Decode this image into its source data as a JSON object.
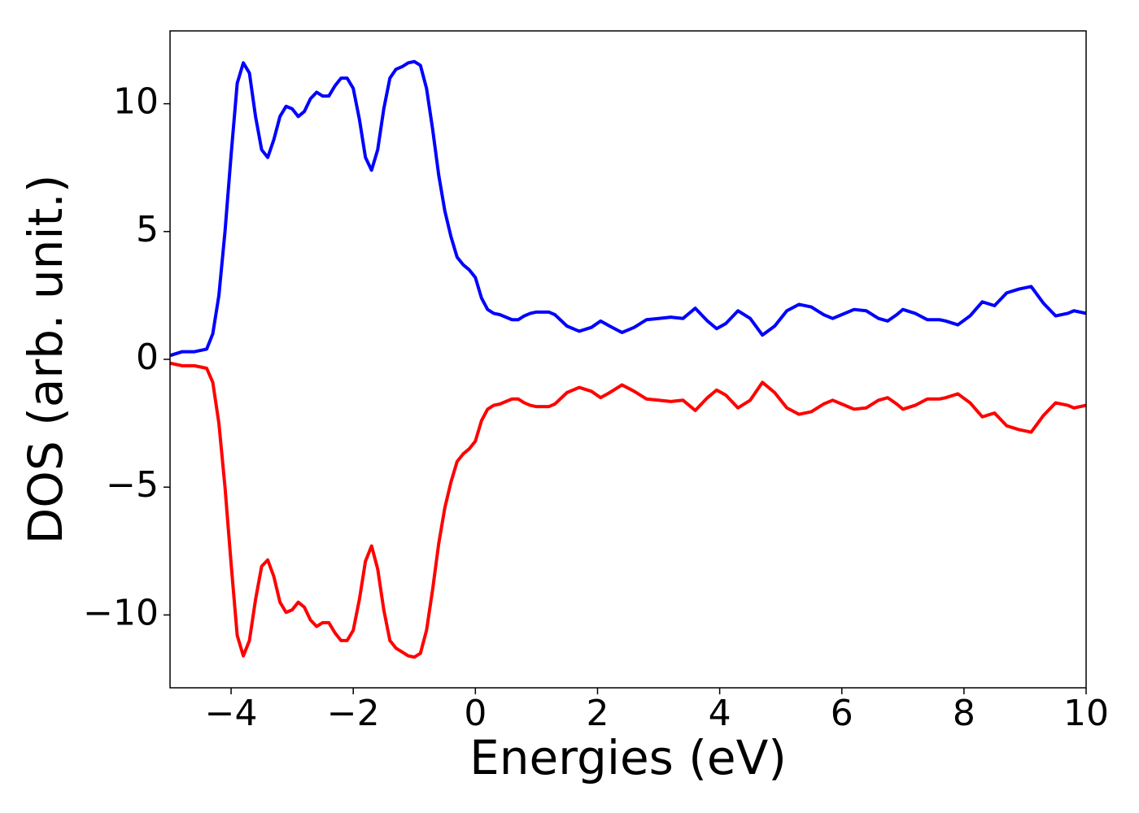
{
  "chart_data": {
    "type": "line",
    "xlabel": "Energies (eV)",
    "ylabel": "DOS (arb. unit.)",
    "x": [
      -5,
      -4.8,
      -4.6,
      -4.4,
      -4.3,
      -4.2,
      -4.1,
      -4,
      -3.9,
      -3.8,
      -3.7,
      -3.6,
      -3.5,
      -3.4,
      -3.3,
      -3.2,
      -3.1,
      -3,
      -2.9,
      -2.8,
      -2.7,
      -2.6,
      -2.5,
      -2.4,
      -2.3,
      -2.2,
      -2.1,
      -2,
      -1.9,
      -1.8,
      -1.7,
      -1.6,
      -1.5,
      -1.4,
      -1.3,
      -1.2,
      -1.1,
      -1,
      -0.9,
      -0.8,
      -0.7,
      -0.6,
      -0.5,
      -0.4,
      -0.3,
      -0.2,
      -0.1,
      0,
      0.1,
      0.2,
      0.3,
      0.4,
      0.5,
      0.6,
      0.7,
      0.8,
      0.9,
      1,
      1.2,
      1.3,
      1.5,
      1.7,
      1.9,
      2.05,
      2.2,
      2.4,
      2.6,
      2.8,
      3,
      3.2,
      3.4,
      3.6,
      3.8,
      3.95,
      4.1,
      4.3,
      4.5,
      4.7,
      4.9,
      5.1,
      5.3,
      5.5,
      5.7,
      5.85,
      6,
      6.2,
      6.4,
      6.6,
      6.75,
      6.9,
      7,
      7.2,
      7.4,
      7.6,
      7.7,
      7.9,
      8.1,
      8.3,
      8.5,
      8.7,
      8.9,
      9.1,
      9.3,
      9.5,
      9.7,
      9.8,
      10
    ],
    "series": [
      {
        "color": "#0000ff",
        "values": [
          0.15,
          0.3,
          0.3,
          0.4,
          1.0,
          2.5,
          5,
          8,
          10.8,
          11.6,
          11.2,
          9.5,
          8.2,
          7.9,
          8.6,
          9.5,
          9.9,
          9.8,
          9.5,
          9.7,
          10.2,
          10.45,
          10.3,
          10.3,
          10.7,
          11,
          11,
          10.6,
          9.4,
          7.9,
          7.4,
          8.2,
          9.8,
          11,
          11.35,
          11.45,
          11.6,
          11.65,
          11.5,
          10.6,
          9,
          7.2,
          5.8,
          4.8,
          4,
          3.7,
          3.5,
          3.2,
          2.4,
          1.95,
          1.8,
          1.75,
          1.65,
          1.55,
          1.55,
          1.7,
          1.8,
          1.85,
          1.85,
          1.75,
          1.3,
          1.1,
          1.25,
          1.5,
          1.3,
          1.05,
          1.25,
          1.55,
          1.6,
          1.65,
          1.6,
          2,
          1.5,
          1.2,
          1.4,
          1.9,
          1.6,
          0.95,
          1.3,
          1.9,
          2.15,
          2.05,
          1.75,
          1.6,
          1.75,
          1.95,
          1.9,
          1.6,
          1.5,
          1.75,
          1.95,
          1.8,
          1.55,
          1.55,
          1.5,
          1.35,
          1.7,
          2.25,
          2.1,
          2.6,
          2.75,
          2.85,
          2.2,
          1.7,
          1.8,
          1.9,
          1.8
        ]
      },
      {
        "color": "#ff0000",
        "values": [
          -0.15,
          -0.25,
          -0.25,
          -0.35,
          -0.9,
          -2.5,
          -5,
          -8,
          -10.8,
          -11.6,
          -11,
          -9.4,
          -8.1,
          -7.85,
          -8.5,
          -9.5,
          -9.9,
          -9.8,
          -9.5,
          -9.7,
          -10.2,
          -10.45,
          -10.3,
          -10.3,
          -10.7,
          -11,
          -11,
          -10.6,
          -9.4,
          -7.9,
          -7.3,
          -8.2,
          -9.8,
          -11,
          -11.3,
          -11.45,
          -11.6,
          -11.65,
          -11.5,
          -10.6,
          -9,
          -7.2,
          -5.8,
          -4.8,
          -4,
          -3.7,
          -3.5,
          -3.2,
          -2.4,
          -1.95,
          -1.8,
          -1.75,
          -1.65,
          -1.55,
          -1.55,
          -1.7,
          -1.8,
          -1.85,
          -1.85,
          -1.75,
          -1.3,
          -1.1,
          -1.25,
          -1.5,
          -1.3,
          -1.0,
          -1.25,
          -1.55,
          -1.6,
          -1.65,
          -1.6,
          -2,
          -1.5,
          -1.2,
          -1.4,
          -1.9,
          -1.6,
          -0.9,
          -1.3,
          -1.9,
          -2.15,
          -2.05,
          -1.75,
          -1.6,
          -1.75,
          -1.95,
          -1.9,
          -1.6,
          -1.5,
          -1.75,
          -1.95,
          -1.8,
          -1.55,
          -1.55,
          -1.5,
          -1.35,
          -1.7,
          -2.25,
          -2.1,
          -2.6,
          -2.75,
          -2.85,
          -2.2,
          -1.7,
          -1.8,
          -1.9,
          -1.8
        ]
      }
    ],
    "xlim": [
      -5,
      10
    ],
    "xticks": [
      {
        "value": -4,
        "label": "−4"
      },
      {
        "value": -2,
        "label": "−2"
      },
      0,
      2,
      4,
      6,
      8,
      10
    ],
    "ylim": [
      -12.85,
      12.85
    ],
    "yticks": [
      {
        "value": -10,
        "label": "−10"
      },
      {
        "value": -5,
        "label": "−5"
      },
      0,
      5,
      10
    ],
    "grid": false
  }
}
